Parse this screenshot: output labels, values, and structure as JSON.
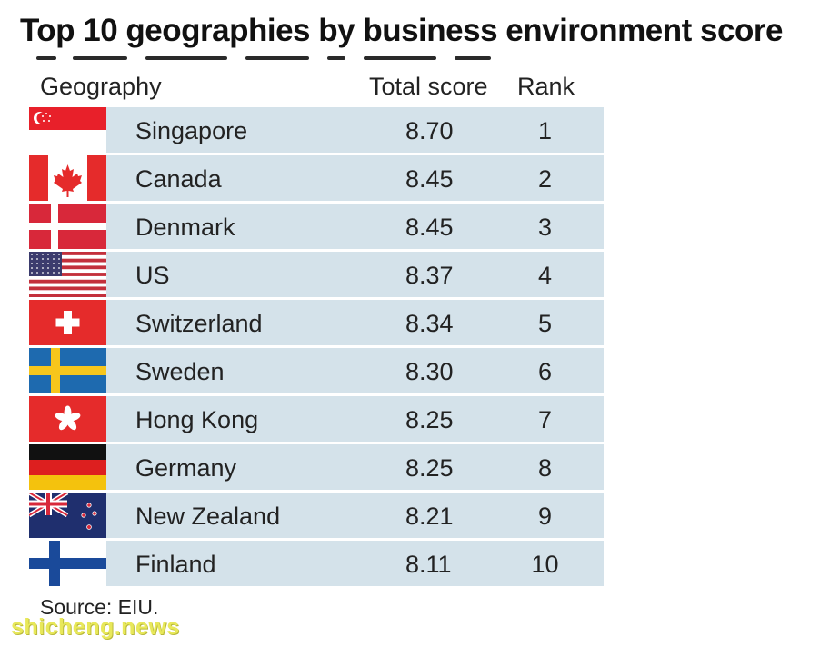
{
  "title": "Top 10 geographies by business environment score",
  "headers": {
    "geography": "Geography",
    "total_score": "Total score",
    "rank": "Rank"
  },
  "source": "Source: EIU.",
  "watermark": "shicheng.news",
  "colors": {
    "row_bg": "#d4e2ea"
  },
  "chart_data": {
    "type": "table",
    "title": "Top 10 geographies by business environment score",
    "columns": [
      "Geography",
      "Total score",
      "Rank"
    ],
    "rows": [
      {
        "geography": "Singapore",
        "flag": "singapore-flag",
        "score": "8.70",
        "rank": "1"
      },
      {
        "geography": "Canada",
        "flag": "canada-flag",
        "score": "8.45",
        "rank": "2"
      },
      {
        "geography": "Denmark",
        "flag": "denmark-flag",
        "score": "8.45",
        "rank": "3"
      },
      {
        "geography": "US",
        "flag": "us-flag",
        "score": "8.37",
        "rank": "4"
      },
      {
        "geography": "Switzerland",
        "flag": "switzerland-flag",
        "score": "8.34",
        "rank": "5"
      },
      {
        "geography": "Sweden",
        "flag": "sweden-flag",
        "score": "8.30",
        "rank": "6"
      },
      {
        "geography": "Hong Kong",
        "flag": "hong-kong-flag",
        "score": "8.25",
        "rank": "7"
      },
      {
        "geography": "Germany",
        "flag": "germany-flag",
        "score": "8.25",
        "rank": "8"
      },
      {
        "geography": "New Zealand",
        "flag": "new-zealand-flag",
        "score": "8.21",
        "rank": "9"
      },
      {
        "geography": "Finland",
        "flag": "finland-flag",
        "score": "8.11",
        "rank": "10"
      }
    ]
  }
}
